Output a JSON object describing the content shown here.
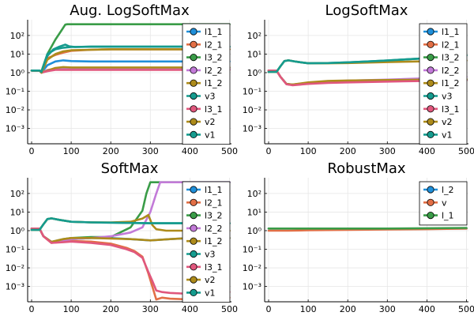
{
  "chart_data": [
    {
      "type": "line",
      "title": "Aug. LogSoftMax",
      "xlabel": "",
      "ylabel": "",
      "xlim": [
        -10,
        505
      ],
      "ylim": [
        0.00015,
        700
      ],
      "yscale": "log",
      "xticks": [
        0,
        100,
        200,
        300,
        400,
        500
      ],
      "yticks": [
        0.001,
        0.01,
        0.1,
        1,
        10,
        100
      ],
      "ytick_labels": [
        "10⁻³",
        "10⁻²",
        "10⁻¹",
        "10⁰",
        "10¹",
        "10²"
      ],
      "grid": true,
      "legend_position": "top-right",
      "series": [
        {
          "name": "l1_1",
          "color": "#1f8fd9",
          "x": [
            0,
            20,
            25,
            40,
            60,
            80,
            100,
            150,
            200,
            300,
            400,
            500
          ],
          "y": [
            1.3,
            1.3,
            1.0,
            2.5,
            4.0,
            4.6,
            4.2,
            4.0,
            4.0,
            4.0,
            4.0,
            4.0
          ]
        },
        {
          "name": "l2_1",
          "color": "#e26f46",
          "x": [
            0,
            20,
            25,
            40,
            60,
            80,
            100,
            150,
            200,
            300,
            400,
            500
          ],
          "y": [
            1.3,
            1.3,
            1.0,
            6.0,
            9.0,
            12.0,
            15.0,
            17.0,
            18.0,
            18.0,
            18.0,
            18.0
          ]
        },
        {
          "name": "l3_2",
          "color": "#3a9c48",
          "x": [
            0,
            20,
            25,
            40,
            60,
            75,
            85,
            90,
            150,
            200,
            300,
            400,
            500
          ],
          "y": [
            1.3,
            1.3,
            1.2,
            10.0,
            60.0,
            180.0,
            380.0,
            400.0,
            400.0,
            400.0,
            400.0,
            400.0,
            400.0
          ]
        },
        {
          "name": "l2_2",
          "color": "#c27ad8",
          "x": [
            0,
            20,
            25,
            40,
            60,
            100,
            200,
            300,
            400,
            500
          ],
          "y": [
            1.3,
            1.3,
            1.0,
            1.4,
            1.6,
            1.6,
            1.6,
            1.6,
            1.6,
            1.6
          ]
        },
        {
          "name": "l1_2",
          "color": "#ad8b1b",
          "x": [
            0,
            20,
            25,
            40,
            60,
            80,
            100,
            150,
            200,
            300,
            400,
            500
          ],
          "y": [
            1.3,
            1.3,
            1.0,
            1.3,
            1.8,
            2.0,
            1.9,
            1.9,
            1.9,
            1.9,
            1.9,
            1.9
          ]
        },
        {
          "name": "v3",
          "color": "#159b8e",
          "x": [
            0,
            20,
            25,
            40,
            55,
            70,
            85,
            95,
            110,
            150,
            200,
            300,
            400,
            500
          ],
          "y": [
            1.3,
            1.3,
            1.1,
            8.0,
            18.0,
            25.0,
            32.0,
            26.0,
            24.0,
            25.0,
            25.0,
            25.0,
            25.0,
            25.0
          ]
        },
        {
          "name": "l3_1",
          "color": "#e0577d",
          "x": [
            0,
            20,
            25,
            40,
            60,
            100,
            200,
            300,
            400,
            500
          ],
          "y": [
            1.3,
            1.3,
            1.0,
            1.2,
            1.4,
            1.4,
            1.4,
            1.4,
            1.4,
            1.4
          ]
        },
        {
          "name": "v2",
          "color": "#ad8b1b",
          "x": [
            0,
            20,
            25,
            40,
            60,
            80,
            100,
            150,
            200,
            300,
            400,
            500
          ],
          "y": [
            1.3,
            1.3,
            1.0,
            5.0,
            10.0,
            14.0,
            16.0,
            17.0,
            18.0,
            18.0,
            18.0,
            18.0
          ]
        },
        {
          "name": "v1",
          "color": "#159b8e",
          "x": [
            0,
            20,
            25,
            40,
            60,
            80,
            100,
            150,
            200,
            300,
            400,
            500
          ],
          "y": [
            1.3,
            1.3,
            1.1,
            10.0,
            18.0,
            22.0,
            24.0,
            25.0,
            25.0,
            25.0,
            25.0,
            25.0
          ]
        }
      ]
    },
    {
      "type": "line",
      "title": "LogSoftMax",
      "xlabel": "",
      "ylabel": "",
      "xlim": [
        -10,
        505
      ],
      "ylim": [
        0.00015,
        700
      ],
      "yscale": "log",
      "xticks": [
        0,
        100,
        200,
        300,
        400,
        500
      ],
      "yticks": [
        0.001,
        0.01,
        0.1,
        1,
        10,
        100
      ],
      "ytick_labels": [
        "10⁻³",
        "10⁻²",
        "10⁻¹",
        "10⁰",
        "10¹",
        "10²"
      ],
      "grid": true,
      "legend_position": "top-right",
      "series": [
        {
          "name": "l1_1",
          "color": "#1f8fd9",
          "x": [
            0,
            20,
            30,
            45,
            60,
            100,
            150,
            200,
            300,
            400,
            500
          ],
          "y": [
            1.3,
            1.3,
            0.6,
            0.25,
            0.22,
            0.27,
            0.3,
            0.32,
            0.35,
            0.38,
            0.4
          ]
        },
        {
          "name": "l2_1",
          "color": "#e26f46",
          "x": [
            0,
            20,
            30,
            45,
            60,
            100,
            150,
            200,
            300,
            400,
            500
          ],
          "y": [
            1.3,
            1.3,
            0.6,
            0.24,
            0.22,
            0.27,
            0.3,
            0.32,
            0.35,
            0.38,
            0.4
          ]
        },
        {
          "name": "l3_2",
          "color": "#3a9c48",
          "x": [
            0,
            20,
            30,
            45,
            60,
            100,
            150,
            200,
            300,
            400,
            500
          ],
          "y": [
            1.3,
            1.3,
            0.6,
            0.25,
            0.23,
            0.28,
            0.32,
            0.34,
            0.38,
            0.4,
            0.42
          ]
        },
        {
          "name": "l2_2",
          "color": "#c27ad8",
          "x": [
            0,
            20,
            30,
            45,
            60,
            100,
            150,
            200,
            300,
            400,
            500
          ],
          "y": [
            1.3,
            1.3,
            0.6,
            0.24,
            0.22,
            0.28,
            0.33,
            0.37,
            0.42,
            0.5,
            0.6
          ]
        },
        {
          "name": "l1_2",
          "color": "#ad8b1b",
          "x": [
            0,
            20,
            30,
            45,
            60,
            100,
            150,
            200,
            300,
            400,
            500
          ],
          "y": [
            1.3,
            1.3,
            0.6,
            0.25,
            0.23,
            0.3,
            0.36,
            0.38,
            0.4,
            0.42,
            0.45
          ]
        },
        {
          "name": "v3",
          "color": "#159b8e",
          "x": [
            0,
            20,
            30,
            40,
            50,
            70,
            100,
            150,
            200,
            250,
            300,
            350,
            400,
            450,
            500
          ],
          "y": [
            1.1,
            1.1,
            2.2,
            4.2,
            4.6,
            3.9,
            3.2,
            3.3,
            3.6,
            4.0,
            4.5,
            5.2,
            6.0,
            7.0,
            8.5
          ]
        },
        {
          "name": "l3_1",
          "color": "#e0577d",
          "x": [
            0,
            20,
            30,
            45,
            60,
            100,
            150,
            200,
            300,
            400,
            500
          ],
          "y": [
            1.3,
            1.3,
            0.6,
            0.24,
            0.21,
            0.25,
            0.28,
            0.3,
            0.33,
            0.36,
            0.38
          ]
        },
        {
          "name": "v2",
          "color": "#ad8b1b",
          "x": [
            0,
            20,
            30,
            40,
            50,
            70,
            100,
            150,
            200,
            250,
            300,
            350,
            400,
            450,
            500
          ],
          "y": [
            1.1,
            1.1,
            2.2,
            4.2,
            4.6,
            3.9,
            3.2,
            3.2,
            3.3,
            3.5,
            3.7,
            3.9,
            4.1,
            4.3,
            4.5
          ]
        },
        {
          "name": "v1",
          "color": "#159b8e",
          "x": [
            0,
            20,
            30,
            40,
            50,
            70,
            100,
            150,
            200,
            250,
            300,
            350,
            400,
            450,
            500
          ],
          "y": [
            1.1,
            1.1,
            2.2,
            4.2,
            4.6,
            3.9,
            3.2,
            3.3,
            3.6,
            4.0,
            4.5,
            5.2,
            6.0,
            7.0,
            8.5
          ]
        }
      ]
    },
    {
      "type": "line",
      "title": "SoftMax",
      "xlabel": "",
      "ylabel": "",
      "xlim": [
        -10,
        505
      ],
      "ylim": [
        0.00015,
        700
      ],
      "yscale": "log",
      "xticks": [
        0,
        100,
        200,
        300,
        400,
        500
      ],
      "yticks": [
        0.001,
        0.01,
        0.1,
        1,
        10,
        100
      ],
      "ytick_labels": [
        "10⁻³",
        "10⁻²",
        "10⁻¹",
        "10⁰",
        "10¹",
        "10²"
      ],
      "grid": true,
      "legend_position": "top-right",
      "series": [
        {
          "name": "l1_1",
          "color": "#1f8fd9",
          "x": [
            0,
            20,
            30,
            50,
            80,
            100,
            150,
            200,
            250,
            300,
            350,
            400,
            500
          ],
          "y": [
            1.3,
            1.3,
            0.5,
            0.25,
            0.3,
            0.35,
            0.4,
            0.4,
            0.35,
            0.3,
            0.35,
            0.4,
            0.4
          ]
        },
        {
          "name": "l2_1",
          "color": "#e26f46",
          "x": [
            0,
            20,
            30,
            50,
            80,
            100,
            150,
            200,
            240,
            260,
            280,
            295,
            305,
            315,
            330,
            350,
            400,
            500
          ],
          "y": [
            1.3,
            1.3,
            0.5,
            0.22,
            0.26,
            0.28,
            0.26,
            0.2,
            0.12,
            0.08,
            0.04,
            0.005,
            0.001,
            0.0002,
            0.00025,
            0.00022,
            0.0002,
            0.00025
          ]
        },
        {
          "name": "l3_2",
          "color": "#3a9c48",
          "x": [
            0,
            20,
            30,
            50,
            80,
            100,
            150,
            200,
            250,
            280,
            290,
            300,
            310,
            400,
            500
          ],
          "y": [
            1.3,
            1.3,
            0.5,
            0.25,
            0.35,
            0.4,
            0.45,
            0.45,
            1.5,
            12.0,
            100.0,
            400.0,
            400.0,
            400.0,
            400.0
          ]
        },
        {
          "name": "l2_2",
          "color": "#c27ad8",
          "x": [
            0,
            20,
            30,
            50,
            80,
            100,
            150,
            200,
            250,
            280,
            300,
            315,
            325,
            400,
            500
          ],
          "y": [
            1.3,
            1.3,
            0.5,
            0.25,
            0.3,
            0.35,
            0.4,
            0.5,
            0.8,
            1.5,
            10.0,
            100.0,
            400.0,
            400.0,
            400.0
          ]
        },
        {
          "name": "l1_2",
          "color": "#ad8b1b",
          "x": [
            0,
            20,
            30,
            50,
            80,
            100,
            150,
            200,
            250,
            280,
            300,
            350,
            400,
            500
          ],
          "y": [
            1.3,
            1.3,
            0.5,
            0.25,
            0.35,
            0.4,
            0.4,
            0.38,
            0.35,
            0.32,
            0.3,
            0.35,
            0.4,
            0.4
          ]
        },
        {
          "name": "v3",
          "color": "#159b8e",
          "x": [
            0,
            20,
            30,
            40,
            50,
            70,
            100,
            150,
            200,
            250,
            300,
            350,
            400,
            500
          ],
          "y": [
            1.1,
            1.1,
            2.2,
            4.2,
            4.6,
            3.8,
            3.0,
            2.8,
            2.7,
            2.6,
            2.5,
            2.5,
            2.5,
            2.5
          ]
        },
        {
          "name": "l3_1",
          "color": "#e0577d",
          "x": [
            0,
            20,
            30,
            50,
            80,
            100,
            150,
            200,
            240,
            260,
            280,
            295,
            305,
            315,
            330,
            350,
            400,
            500
          ],
          "y": [
            1.3,
            1.3,
            0.5,
            0.22,
            0.24,
            0.26,
            0.22,
            0.17,
            0.1,
            0.07,
            0.035,
            0.006,
            0.002,
            0.0006,
            0.0005,
            0.00045,
            0.0004,
            0.0005
          ]
        },
        {
          "name": "v2",
          "color": "#ad8b1b",
          "x": [
            0,
            20,
            30,
            40,
            50,
            70,
            100,
            150,
            200,
            250,
            280,
            295,
            305,
            315,
            340,
            400,
            500
          ],
          "y": [
            1.1,
            1.1,
            2.2,
            4.2,
            4.6,
            3.8,
            3.0,
            2.8,
            2.8,
            3.0,
            4.5,
            7.0,
            2.0,
            1.2,
            1.0,
            1.0,
            1.0
          ]
        },
        {
          "name": "v1",
          "color": "#159b8e",
          "x": [
            0,
            20,
            30,
            40,
            50,
            70,
            100,
            150,
            200,
            250,
            300,
            350,
            400,
            500
          ],
          "y": [
            1.1,
            1.1,
            2.2,
            4.2,
            4.6,
            3.8,
            3.0,
            2.8,
            2.7,
            2.6,
            2.5,
            2.5,
            2.5,
            2.5
          ]
        }
      ]
    },
    {
      "type": "line",
      "title": "RobustMax",
      "xlabel": "",
      "ylabel": "",
      "xlim": [
        -10,
        505
      ],
      "ylim": [
        0.00015,
        700
      ],
      "yscale": "log",
      "xticks": [
        0,
        100,
        200,
        300,
        400,
        500
      ],
      "yticks": [
        0.001,
        0.01,
        0.1,
        1,
        10,
        100
      ],
      "ytick_labels": [
        "10⁻³",
        "10⁻²",
        "10⁻¹",
        "10⁰",
        "10¹",
        "10²"
      ],
      "grid": true,
      "legend_position": "top-right",
      "series": [
        {
          "name": "l_2",
          "color": "#1f8fd9",
          "x": [
            0,
            100,
            200,
            300,
            400,
            500
          ],
          "y": [
            1.3,
            1.3,
            1.3,
            1.3,
            1.3,
            1.3
          ]
        },
        {
          "name": "v",
          "color": "#e26f46",
          "x": [
            0,
            50,
            100,
            200,
            300,
            400,
            500
          ],
          "y": [
            1.0,
            1.0,
            1.05,
            1.1,
            1.15,
            1.2,
            1.3
          ]
        },
        {
          "name": "l_1",
          "color": "#3a9c48",
          "x": [
            0,
            100,
            200,
            300,
            400,
            500
          ],
          "y": [
            1.3,
            1.3,
            1.3,
            1.3,
            1.35,
            1.4
          ]
        }
      ]
    }
  ]
}
